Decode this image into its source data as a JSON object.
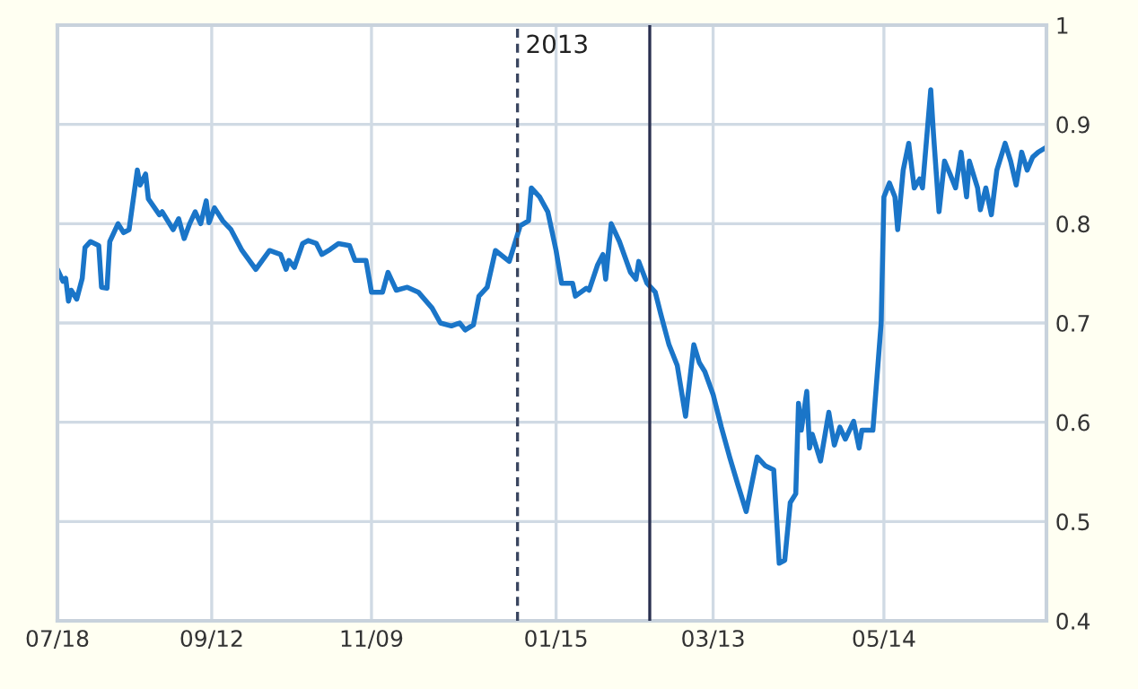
{
  "chart_data": {
    "type": "line",
    "x": [
      "2012-07-18",
      "2012-07-20",
      "2012-07-21",
      "2012-07-22",
      "2012-07-23",
      "2012-07-25",
      "2012-07-27",
      "2012-07-28",
      "2012-07-30",
      "2012-08-02",
      "2012-08-03",
      "2012-08-05",
      "2012-08-06",
      "2012-08-09",
      "2012-08-11",
      "2012-08-13",
      "2012-08-16",
      "2012-08-17",
      "2012-08-19",
      "2012-08-20",
      "2012-08-24",
      "2012-08-25",
      "2012-08-29",
      "2012-08-31",
      "2012-09-02",
      "2012-09-04",
      "2012-09-06",
      "2012-09-08",
      "2012-09-10",
      "2012-09-11",
      "2012-09-13",
      "2012-09-16",
      "2012-09-19",
      "2012-09-23",
      "2012-09-28",
      "2012-10-03",
      "2012-10-07",
      "2012-10-09",
      "2012-10-10",
      "2012-10-12",
      "2012-10-15",
      "2012-10-17",
      "2012-10-20",
      "2012-10-22",
      "2012-10-25",
      "2012-10-28",
      "2012-11-01",
      "2012-11-03",
      "2012-11-07",
      "2012-11-09",
      "2012-11-13",
      "2012-11-15",
      "2012-11-18",
      "2012-11-22",
      "2012-11-26",
      "2012-12-01",
      "2012-12-04",
      "2012-12-08",
      "2012-12-11",
      "2012-12-13",
      "2012-12-16",
      "2012-12-18",
      "2012-12-21",
      "2012-12-24",
      "2012-12-29",
      "2013-01-02",
      "2013-01-05",
      "2013-01-06",
      "2013-01-09",
      "2013-01-12",
      "2013-01-15",
      "2013-01-17",
      "2013-01-21",
      "2013-01-22",
      "2013-01-26",
      "2013-01-27",
      "2013-01-30",
      "2013-02-01",
      "2013-02-02",
      "2013-02-04",
      "2013-02-07",
      "2013-02-11",
      "2013-02-13",
      "2013-02-14",
      "2013-02-17",
      "2013-02-20",
      "2013-02-22",
      "2013-02-25",
      "2013-02-28",
      "2013-03-03",
      "2013-03-06",
      "2013-03-08",
      "2013-03-10",
      "2013-03-13",
      "2013-03-16",
      "2013-03-19",
      "2013-03-22",
      "2013-03-25",
      "2013-03-29",
      "2013-04-01",
      "2013-04-04",
      "2013-04-06",
      "2013-04-08",
      "2013-04-10",
      "2013-04-12",
      "2013-04-13",
      "2013-04-14",
      "2013-04-16",
      "2013-04-17",
      "2013-04-18",
      "2013-04-21",
      "2013-04-24",
      "2013-04-26",
      "2013-04-28",
      "2013-04-30",
      "2013-05-03",
      "2013-05-05",
      "2013-05-06",
      "2013-05-10",
      "2013-05-13",
      "2013-05-14",
      "2013-05-16",
      "2013-05-18",
      "2013-05-19",
      "2013-05-21",
      "2013-05-23",
      "2013-05-25",
      "2013-05-27",
      "2013-05-28",
      "2013-05-31",
      "2013-06-01",
      "2013-06-03",
      "2013-06-05",
      "2013-06-07",
      "2013-06-09",
      "2013-06-11",
      "2013-06-13",
      "2013-06-14",
      "2013-06-17",
      "2013-06-18",
      "2013-06-20",
      "2013-06-22",
      "2013-06-24",
      "2013-06-27",
      "2013-06-29",
      "2013-07-01",
      "2013-07-03",
      "2013-07-05",
      "2013-07-07",
      "2013-07-09",
      "2013-07-12"
    ],
    "series": [
      {
        "color": "#1a75c8",
        "values": [
          0.754,
          0.742,
          0.745,
          0.722,
          0.733,
          0.724,
          0.745,
          0.776,
          0.782,
          0.778,
          0.736,
          0.735,
          0.782,
          0.8,
          0.791,
          0.794,
          0.854,
          0.839,
          0.85,
          0.825,
          0.809,
          0.812,
          0.794,
          0.805,
          0.785,
          0.8,
          0.812,
          0.8,
          0.823,
          0.801,
          0.816,
          0.803,
          0.794,
          0.773,
          0.754,
          0.773,
          0.769,
          0.754,
          0.763,
          0.756,
          0.78,
          0.783,
          0.78,
          0.769,
          0.774,
          0.78,
          0.778,
          0.763,
          0.763,
          0.731,
          0.731,
          0.751,
          0.733,
          0.736,
          0.731,
          0.715,
          0.7,
          0.697,
          0.7,
          0.693,
          0.698,
          0.727,
          0.736,
          0.773,
          0.762,
          0.798,
          0.803,
          0.836,
          0.827,
          0.812,
          0.773,
          0.74,
          0.74,
          0.727,
          0.735,
          0.733,
          0.758,
          0.769,
          0.744,
          0.8,
          0.782,
          0.751,
          0.744,
          0.762,
          0.74,
          0.731,
          0.709,
          0.678,
          0.657,
          0.606,
          0.678,
          0.66,
          0.651,
          0.628,
          0.595,
          0.565,
          0.537,
          0.51,
          0.565,
          0.556,
          0.552,
          0.458,
          0.461,
          0.519,
          0.528,
          0.619,
          0.592,
          0.631,
          0.574,
          0.588,
          0.561,
          0.61,
          0.577,
          0.595,
          0.583,
          0.601,
          0.574,
          0.592,
          0.592,
          0.7,
          0.827,
          0.841,
          0.827,
          0.794,
          0.854,
          0.881,
          0.836,
          0.845,
          0.836,
          0.935,
          0.89,
          0.812,
          0.863,
          0.85,
          0.836,
          0.872,
          0.827,
          0.863,
          0.836,
          0.814,
          0.836,
          0.809,
          0.854,
          0.881,
          0.863,
          0.839,
          0.872,
          0.854,
          0.867,
          0.872,
          0.877
        ]
      }
    ],
    "xlim": [
      "2012-07-18",
      "2013-07-12"
    ],
    "xticks": [
      {
        "value": "2012-07-18",
        "label": "07/18"
      },
      {
        "value": "2012-09-12",
        "label": "09/12"
      },
      {
        "value": "2012-11-09",
        "label": "11/09"
      },
      {
        "value": "2013-01-15",
        "label": "01/15"
      },
      {
        "value": "2013-03-13",
        "label": "03/13"
      },
      {
        "value": "2013-05-14",
        "label": "05/14"
      }
    ],
    "ylim": [
      0.4,
      1
    ],
    "yticks": [
      0.4,
      0.5,
      0.6,
      0.7,
      0.8,
      0.9,
      1
    ],
    "grid": true,
    "legend": false,
    "marker": "none",
    "line_style": "solid",
    "ref_lines": [
      {
        "axis": "x",
        "value": "2013-01-01",
        "label": "2013",
        "color": "#3a4660",
        "line_style": "dashed"
      },
      {
        "axis": "x",
        "value": "2013-02-18",
        "label": null,
        "color": "#2a3050",
        "line_style": "solid"
      }
    ]
  }
}
